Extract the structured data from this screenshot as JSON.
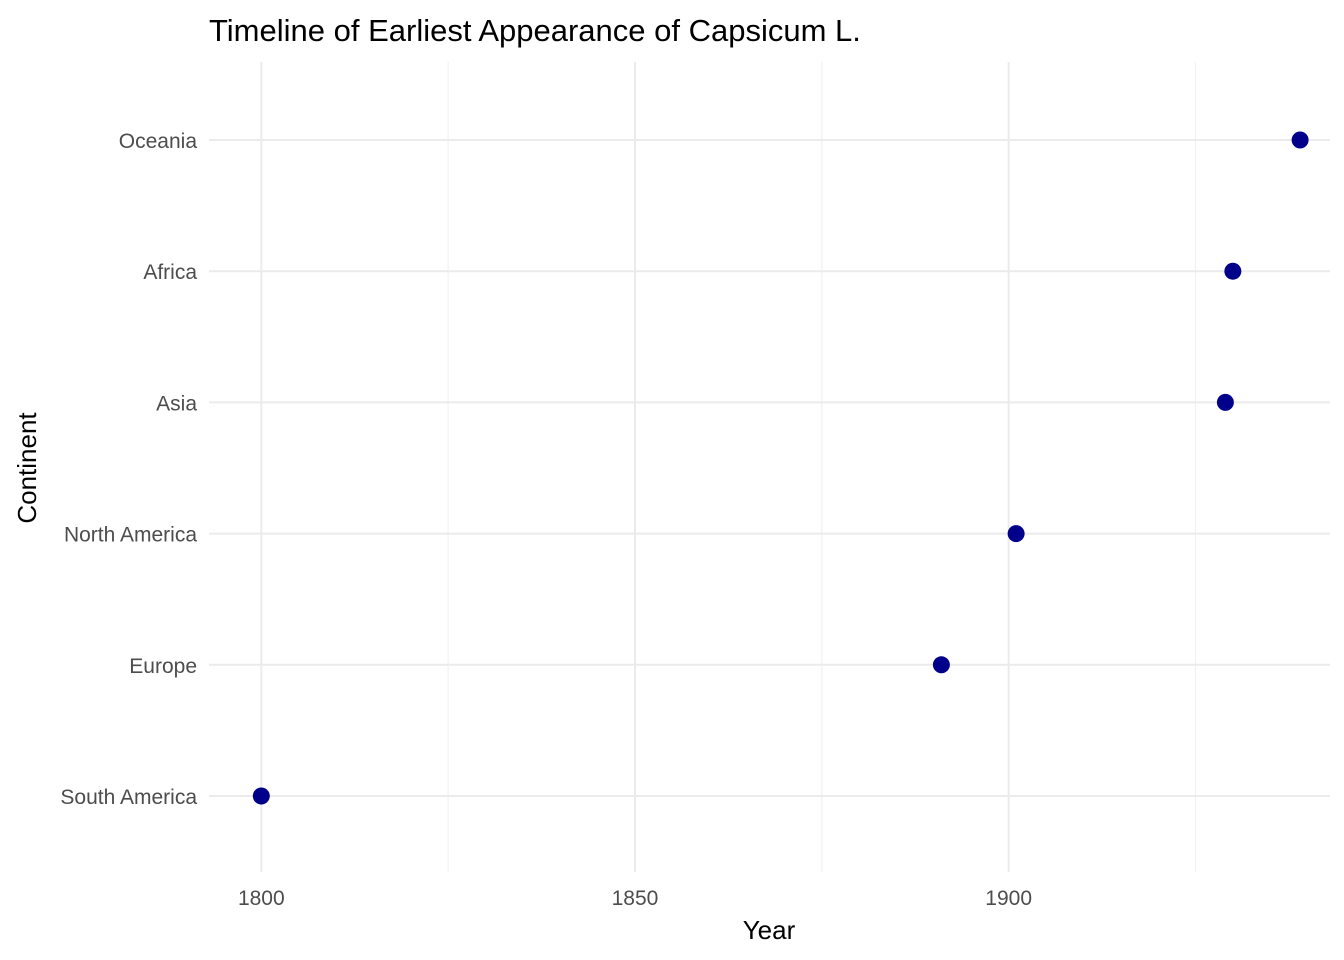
{
  "chart_data": {
    "type": "scatter",
    "title": "Timeline of Earliest Appearance of Capsicum L.",
    "xlabel": "Year",
    "ylabel": "Continent",
    "categories": [
      "South America",
      "Europe",
      "North America",
      "Asia",
      "Africa",
      "Oceania"
    ],
    "points": [
      {
        "category": "South America",
        "year": 1800
      },
      {
        "category": "Europe",
        "year": 1891
      },
      {
        "category": "North America",
        "year": 1901
      },
      {
        "category": "Asia",
        "year": 1929
      },
      {
        "category": "Africa",
        "year": 1930
      },
      {
        "category": "Oceania",
        "year": 1939
      }
    ],
    "xticks": [
      1800,
      1850,
      1900
    ],
    "xlim": [
      1793,
      1943
    ],
    "grid": true,
    "legend": "none",
    "point_color": "#00008B"
  }
}
